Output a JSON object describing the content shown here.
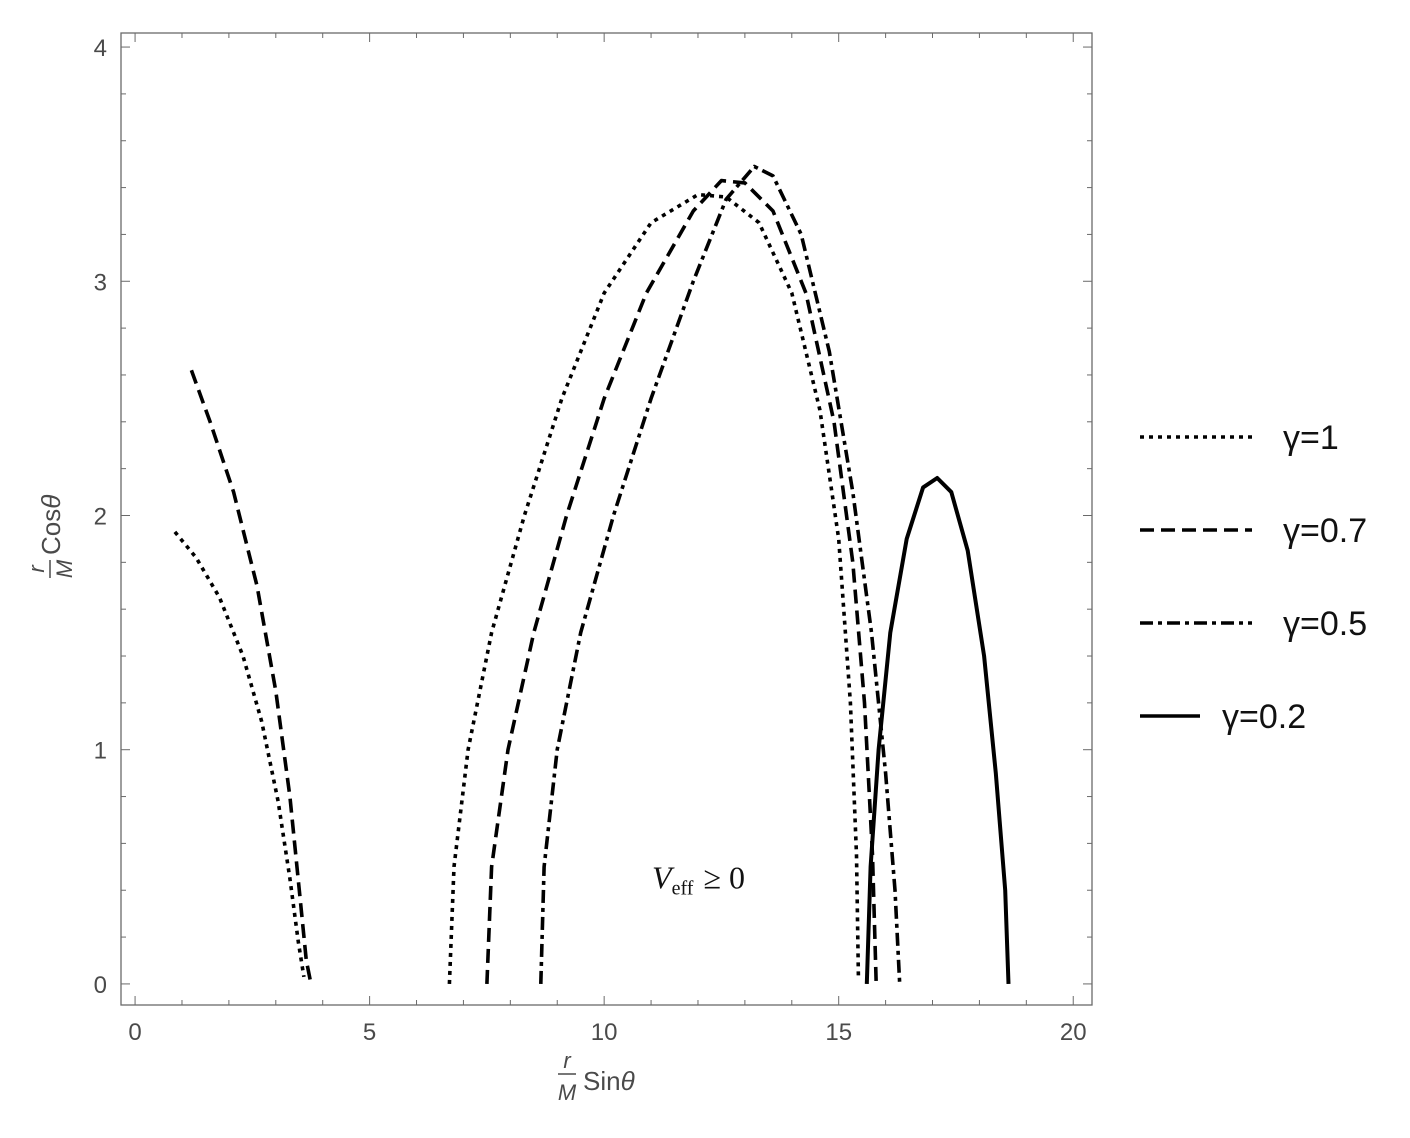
{
  "chart_data": {
    "type": "line",
    "xlabel": "r/M Sinθ",
    "ylabel": "r/M Cosθ",
    "xlabel_parts": {
      "num": "r",
      "den": "M",
      "fn": "Sin",
      "sym": "θ"
    },
    "ylabel_parts": {
      "num": "r",
      "den": "M",
      "fn": "Cos",
      "sym": "θ"
    },
    "xlim": [
      -0.3,
      20.4
    ],
    "ylim": [
      -0.09,
      4.06
    ],
    "xticks": [
      0,
      5,
      10,
      15,
      20
    ],
    "yticks": [
      0,
      1,
      2,
      3,
      4
    ],
    "x_minor_step": 1,
    "y_minor_step": 0.2,
    "grid": false,
    "legend_position": "right",
    "annotation": {
      "main": "V",
      "sub": "eff",
      "rest": "≥ 0",
      "x": 12.3,
      "y": 0.45
    },
    "series": [
      {
        "name": "γ=1",
        "style": "dotted",
        "color": "#000000",
        "segments": [
          [
            [
              0.85,
              1.93
            ],
            [
              1.3,
              1.82
            ],
            [
              1.8,
              1.65
            ],
            [
              2.3,
              1.4
            ],
            [
              2.7,
              1.12
            ],
            [
              3.05,
              0.78
            ],
            [
              3.3,
              0.45
            ],
            [
              3.48,
              0.18
            ],
            [
              3.6,
              0.03
            ]
          ],
          [
            [
              6.7,
              0.0
            ],
            [
              6.8,
              0.5
            ],
            [
              7.1,
              1.0
            ],
            [
              7.6,
              1.5
            ],
            [
              8.3,
              2.0
            ],
            [
              9.1,
              2.5
            ],
            [
              10.0,
              2.95
            ],
            [
              11.0,
              3.25
            ],
            [
              12.0,
              3.37
            ],
            [
              12.6,
              3.36
            ],
            [
              13.3,
              3.25
            ],
            [
              14.0,
              2.95
            ],
            [
              14.6,
              2.45
            ],
            [
              15.0,
              1.9
            ],
            [
              15.25,
              1.2
            ],
            [
              15.38,
              0.55
            ],
            [
              15.42,
              0.03
            ]
          ]
        ]
      },
      {
        "name": "γ=0.7",
        "style": "dashed",
        "color": "#000000",
        "segments": [
          [
            [
              1.2,
              2.62
            ],
            [
              1.6,
              2.4
            ],
            [
              2.1,
              2.1
            ],
            [
              2.6,
              1.7
            ],
            [
              3.0,
              1.25
            ],
            [
              3.3,
              0.8
            ],
            [
              3.5,
              0.4
            ],
            [
              3.65,
              0.1
            ],
            [
              3.75,
              0.0
            ]
          ],
          [
            [
              7.5,
              0.0
            ],
            [
              7.6,
              0.5
            ],
            [
              7.95,
              1.0
            ],
            [
              8.5,
              1.5
            ],
            [
              9.2,
              2.0
            ],
            [
              10.0,
              2.5
            ],
            [
              10.9,
              2.95
            ],
            [
              11.9,
              3.3
            ],
            [
              12.5,
              3.43
            ],
            [
              13.0,
              3.42
            ],
            [
              13.6,
              3.3
            ],
            [
              14.3,
              2.95
            ],
            [
              14.9,
              2.4
            ],
            [
              15.3,
              1.8
            ],
            [
              15.55,
              1.2
            ],
            [
              15.72,
              0.55
            ],
            [
              15.8,
              0.0
            ]
          ]
        ]
      },
      {
        "name": "γ=0.5",
        "style": "dashdot",
        "color": "#000000",
        "segments": [
          [
            [
              8.65,
              0.0
            ],
            [
              8.72,
              0.5
            ],
            [
              9.0,
              1.0
            ],
            [
              9.5,
              1.5
            ],
            [
              10.2,
              2.0
            ],
            [
              11.0,
              2.5
            ],
            [
              11.9,
              3.0
            ],
            [
              12.6,
              3.35
            ],
            [
              13.2,
              3.49
            ],
            [
              13.6,
              3.45
            ],
            [
              14.2,
              3.2
            ],
            [
              14.8,
              2.7
            ],
            [
              15.3,
              2.1
            ],
            [
              15.7,
              1.5
            ],
            [
              16.0,
              0.9
            ],
            [
              16.2,
              0.4
            ],
            [
              16.3,
              0.0
            ]
          ]
        ]
      },
      {
        "name": "γ=0.2",
        "style": "solid",
        "color": "#000000",
        "segments": [
          [
            [
              15.6,
              0.0
            ],
            [
              15.68,
              0.5
            ],
            [
              15.85,
              1.0
            ],
            [
              16.1,
              1.5
            ],
            [
              16.45,
              1.9
            ],
            [
              16.8,
              2.12
            ],
            [
              17.1,
              2.16
            ],
            [
              17.4,
              2.1
            ],
            [
              17.75,
              1.85
            ],
            [
              18.1,
              1.4
            ],
            [
              18.35,
              0.9
            ],
            [
              18.55,
              0.4
            ],
            [
              18.62,
              0.0
            ]
          ]
        ]
      }
    ]
  }
}
